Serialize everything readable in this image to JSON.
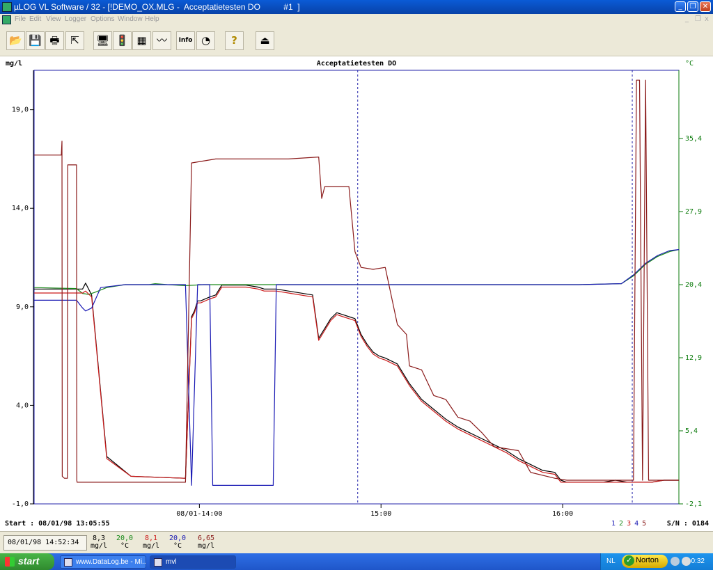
{
  "window": {
    "title": "µLOG VL Software / 32 - [!DEMO_OX.MLG -  Acceptatietesten DO          #1  ]",
    "minimize_glyph": "_",
    "restore_glyph": "❐",
    "close_glyph": "✕"
  },
  "menu": {
    "items": [
      "File",
      "Edit",
      "View",
      "Logger",
      "Options",
      "Window",
      "Help"
    ],
    "mdi_minimize": "_",
    "mdi_restore": "❐",
    "mdi_close": "x"
  },
  "toolbar": {
    "buttons": [
      {
        "icon": "open-folder-icon",
        "glyph": "📂"
      },
      {
        "icon": "save-disk-icon",
        "glyph": "💾"
      },
      {
        "icon": "printer-icon",
        "glyph": "🖶"
      },
      {
        "icon": "export-icon",
        "glyph": "⇱"
      },
      {
        "icon": "computer-logger-icon",
        "glyph": "🖥"
      },
      {
        "icon": "traffic-light-icon",
        "glyph": "🚦"
      },
      {
        "icon": "window-data-icon",
        "glyph": "▦"
      },
      {
        "icon": "graph-icon",
        "glyph": "〰"
      },
      {
        "icon": "info-icon",
        "glyph": "Info"
      },
      {
        "icon": "gauge-icon",
        "glyph": "◔"
      },
      {
        "icon": "help-icon",
        "glyph": "?"
      },
      {
        "icon": "exit-icon",
        "glyph": "⏏"
      }
    ]
  },
  "chart_data": {
    "type": "line",
    "title": "Acceptatietesten DO",
    "y_left": {
      "label": "mg/l",
      "range": [
        -1.0,
        21.0
      ],
      "ticks": [
        -1.0,
        4.0,
        9.0,
        14.0,
        19.0
      ],
      "tick_labels": [
        "-1,0",
        "4,0",
        "9,0",
        "14,0",
        "19,0"
      ]
    },
    "y_right": {
      "label": "°C",
      "range": [
        -2.1,
        42.4
      ],
      "ticks": [
        -2.1,
        5.4,
        12.9,
        20.4,
        27.9,
        35.4
      ],
      "tick_labels": [
        "-2,1",
        "5,4",
        "12,9",
        "20,4",
        "27,9",
        "35,4"
      ]
    },
    "x_axis": {
      "range_minutes": [
        0,
        213
      ],
      "tick_labels": [
        "08/01-14:00",
        "15:00",
        "16:00"
      ],
      "tick_minutes": [
        54.6,
        114.6,
        174.6
      ]
    },
    "cursor_minutes": [
      106.9,
      197.6
    ],
    "grid": false,
    "series": [
      {
        "channel": 1,
        "unit": "mg/l",
        "color": "#000000",
        "axis": "left",
        "x": [
          0,
          16,
          17,
          19,
          24,
          32,
          50,
          52,
          53,
          54,
          55,
          58,
          60,
          62,
          70,
          74,
          76,
          78,
          80,
          84,
          92,
          94,
          98,
          100,
          102,
          104,
          106,
          108,
          110,
          112,
          114,
          116,
          120,
          124,
          128,
          132,
          136,
          140,
          144,
          148,
          152,
          156,
          160,
          164,
          168,
          172,
          174,
          176,
          180,
          184,
          188,
          192,
          196,
          200,
          204,
          208,
          213
        ],
        "y": [
          9.9,
          9.9,
          10.2,
          9.6,
          1.4,
          0.4,
          0.3,
          8.5,
          8.8,
          9.3,
          9.3,
          9.5,
          9.6,
          10.1,
          10.1,
          10.0,
          9.9,
          9.9,
          9.9,
          9.8,
          9.6,
          7.4,
          8.4,
          8.7,
          8.6,
          8.5,
          8.4,
          7.6,
          7.1,
          6.7,
          6.5,
          6.4,
          6.1,
          5.1,
          4.3,
          3.8,
          3.3,
          2.9,
          2.6,
          2.3,
          2.0,
          1.7,
          1.3,
          1.0,
          0.7,
          0.6,
          0.2,
          0.1,
          0.1,
          0.1,
          0.1,
          0.2,
          0.1,
          0.1,
          0.1,
          0.2,
          0.2
        ]
      },
      {
        "channel": 2,
        "unit": "°C",
        "color": "#1a8a1a",
        "axis": "right",
        "x": [
          0,
          14,
          16,
          18,
          20,
          24,
          30,
          38,
          40,
          44,
          50,
          56,
          60,
          70,
          80,
          100,
          120,
          140,
          160,
          180,
          194,
          198,
          202,
          206,
          210,
          213
        ],
        "y": [
          20.1,
          20.0,
          19.5,
          19.4,
          19.6,
          20.1,
          20.4,
          20.4,
          20.5,
          20.4,
          20.3,
          20.4,
          20.4,
          20.4,
          20.4,
          20.4,
          20.4,
          20.4,
          20.4,
          20.4,
          20.5,
          21.3,
          22.5,
          23.3,
          23.8,
          24.0
        ]
      },
      {
        "channel": 3,
        "unit": "mg/l",
        "color": "#cc1a1a",
        "axis": "left",
        "x": [
          0,
          16,
          17,
          19,
          24,
          32,
          50,
          52,
          53,
          54,
          55,
          58,
          60,
          62,
          70,
          74,
          76,
          78,
          80,
          84,
          92,
          94,
          98,
          100,
          102,
          104,
          106,
          108,
          110,
          112,
          114,
          116,
          120,
          124,
          128,
          132,
          136,
          140,
          144,
          148,
          152,
          156,
          160,
          164,
          168,
          172,
          174,
          176,
          180,
          184,
          188,
          192,
          196,
          200,
          204,
          208,
          213
        ],
        "y": [
          9.7,
          9.7,
          9.8,
          9.5,
          1.3,
          0.4,
          0.3,
          8.4,
          8.7,
          9.2,
          9.2,
          9.4,
          9.5,
          10.0,
          10.0,
          9.9,
          9.8,
          9.8,
          9.8,
          9.7,
          9.5,
          7.3,
          8.3,
          8.6,
          8.5,
          8.4,
          8.3,
          7.5,
          7.0,
          6.6,
          6.4,
          6.3,
          6.0,
          5.0,
          4.2,
          3.7,
          3.2,
          2.8,
          2.5,
          2.2,
          1.9,
          1.6,
          1.2,
          0.9,
          0.6,
          0.5,
          0.1,
          0.1,
          0.1,
          0.1,
          0.1,
          0.1,
          0.1,
          0.1,
          0.1,
          0.2,
          0.2
        ]
      },
      {
        "channel": 4,
        "unit": "°C",
        "color": "#1a1ab4",
        "axis": "right",
        "x": [
          0,
          14,
          16,
          17,
          19,
          22,
          30,
          38,
          40,
          46,
          50,
          52,
          54,
          56,
          58,
          59,
          60,
          61,
          62,
          66,
          68,
          70,
          72,
          74,
          76,
          78,
          79,
          80,
          100,
          120,
          140,
          160,
          180,
          194,
          198,
          202,
          206,
          210,
          213
        ],
        "y": [
          18.8,
          18.8,
          18.0,
          17.7,
          18.0,
          20.1,
          20.4,
          20.4,
          20.4,
          20.4,
          20.4,
          -0.2,
          20.4,
          20.4,
          20.4,
          -0.2,
          -0.2,
          -0.2,
          -0.2,
          -0.2,
          -0.2,
          -0.2,
          -0.2,
          -0.2,
          -0.2,
          -0.2,
          -0.2,
          20.4,
          20.4,
          20.4,
          20.4,
          20.4,
          20.4,
          20.5,
          21.4,
          22.6,
          23.4,
          23.9,
          24.0
        ]
      },
      {
        "channel": 5,
        "unit": "mg/l",
        "color": "#8a1a1a",
        "axis": "left",
        "x": [
          0,
          9,
          9.2,
          9.3,
          10,
          11,
          11.1,
          14,
          14.1,
          14.2,
          44,
          48,
          50,
          52,
          60,
          62,
          70,
          72,
          74,
          76,
          80,
          84,
          94,
          95,
          96,
          98,
          104,
          106,
          108,
          112,
          116,
          120,
          123,
          124,
          128,
          132,
          136,
          140,
          144,
          148,
          152,
          160,
          164,
          172,
          176,
          188,
          198,
          199,
          200,
          201,
          202,
          203,
          213
        ],
        "y": [
          16.7,
          16.7,
          17.4,
          0.4,
          0.3,
          0.3,
          16.2,
          16.2,
          0.2,
          0.1,
          0.1,
          0.1,
          0.1,
          16.3,
          16.5,
          16.5,
          16.5,
          16.5,
          16.5,
          16.5,
          16.5,
          16.5,
          16.6,
          14.5,
          15.1,
          15.1,
          15.1,
          11.8,
          11.0,
          10.9,
          11.0,
          8.1,
          7.6,
          6.0,
          5.8,
          4.5,
          4.3,
          3.4,
          3.2,
          2.6,
          1.9,
          1.7,
          0.6,
          0.3,
          0.2,
          0.2,
          0.2,
          20.5,
          20.5,
          0.2,
          20.5,
          0.2,
          0.2
        ]
      }
    ],
    "channel_numbers": [
      "1",
      "2",
      "3",
      "4",
      "5"
    ]
  },
  "status": {
    "start": "Start : 08/01/98 13:05:55",
    "serial": "S/N : 0184"
  },
  "readout": {
    "timestamp": "08/01/98 14:52:34",
    "values": [
      {
        "value": "8,3",
        "unit": "mg/l",
        "color": "#000000"
      },
      {
        "value": "20,0",
        "unit": "°C",
        "color": "#1a8a1a"
      },
      {
        "value": "8,1",
        "unit": "mg/l",
        "color": "#cc1a1a"
      },
      {
        "value": "20,0",
        "unit": "°C",
        "color": "#1a1ab4"
      },
      {
        "value": "6,65",
        "unit": "mg/l",
        "color": "#8a1a1a"
      }
    ]
  },
  "taskbar": {
    "start_label": "start",
    "tasks": [
      {
        "label": "www.DataLog.be - Mi..."
      },
      {
        "label": "mvl"
      }
    ],
    "tray": {
      "lang": "NL",
      "norton": "Norton",
      "norton_check": "✓",
      "time": "0:32"
    }
  }
}
